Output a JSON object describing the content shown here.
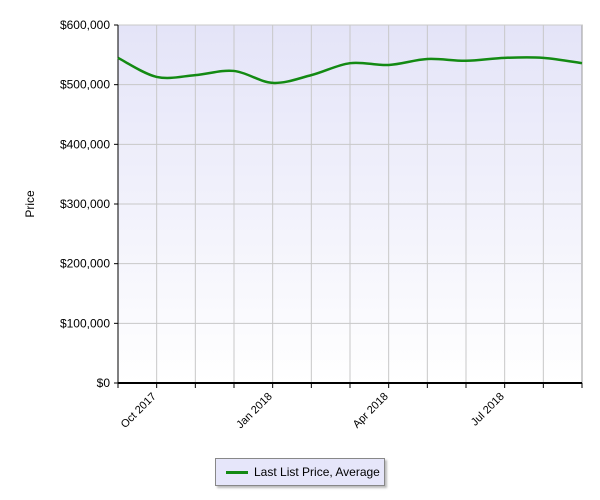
{
  "chart_data": {
    "type": "line",
    "y_label": "Price",
    "categories": [
      null,
      "Oct 2017",
      null,
      null,
      "Jan 2018",
      null,
      null,
      "Apr 2018",
      null,
      null,
      "Jul 2018",
      null,
      null
    ],
    "series": [
      {
        "name": "Last List Price, Average",
        "color": "#138a13",
        "values": [
          545000,
          513000,
          516000,
          523000,
          503000,
          516000,
          536000,
          533000,
          543000,
          540000,
          545000,
          545000,
          536000
        ]
      }
    ],
    "ylim": [
      0,
      600000
    ],
    "yticks": [
      {
        "value": 0,
        "label": "$0"
      },
      {
        "value": 100000,
        "label": "$100,000"
      },
      {
        "value": 200000,
        "label": "$200,000"
      },
      {
        "value": 300000,
        "label": "$300,000"
      },
      {
        "value": 400000,
        "label": "$400,000"
      },
      {
        "value": 500000,
        "label": "$500,000"
      },
      {
        "value": 600000,
        "label": "$600,000"
      }
    ],
    "grid": true
  }
}
